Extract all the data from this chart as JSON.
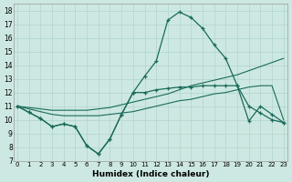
{
  "xlabel": "Humidex (Indice chaleur)",
  "bg_color": "#cde8e2",
  "line_color": "#1a6b5a",
  "grid_color": "#b0d4cc",
  "ylim": [
    7,
    18.5
  ],
  "xlim": [
    -0.3,
    23.3
  ],
  "yticks": [
    7,
    8,
    9,
    10,
    11,
    12,
    13,
    14,
    15,
    16,
    17,
    18
  ],
  "xticks": [
    0,
    1,
    2,
    3,
    4,
    5,
    6,
    7,
    8,
    9,
    10,
    11,
    12,
    13,
    14,
    15,
    16,
    17,
    18,
    19,
    20,
    21,
    22,
    23
  ],
  "curve_peak_x": [
    0,
    1,
    2,
    3,
    4,
    5,
    6,
    7,
    8,
    9,
    10,
    11,
    12,
    13,
    14,
    15,
    16,
    17,
    18,
    19,
    20,
    21,
    22,
    23
  ],
  "curve_peak_y": [
    11.0,
    10.55,
    10.1,
    9.5,
    9.7,
    9.5,
    8.1,
    7.5,
    8.6,
    10.4,
    12.0,
    13.2,
    14.3,
    17.3,
    17.9,
    17.5,
    16.7,
    15.5,
    14.5,
    12.5,
    11.0,
    10.5,
    10.0,
    9.8
  ],
  "curve_diag1_x": [
    0,
    1,
    2,
    3,
    4,
    5,
    6,
    7,
    8,
    9,
    10,
    11,
    12,
    13,
    14,
    15,
    16,
    17,
    18,
    19,
    20,
    21,
    22,
    23
  ],
  "curve_diag1_y": [
    11.0,
    10.9,
    10.8,
    10.7,
    10.7,
    10.7,
    10.7,
    10.8,
    10.9,
    11.1,
    11.3,
    11.5,
    11.7,
    11.9,
    12.2,
    12.5,
    12.7,
    12.9,
    13.1,
    13.3,
    13.6,
    13.9,
    14.2,
    14.5
  ],
  "curve_diag2_x": [
    0,
    1,
    2,
    3,
    4,
    5,
    6,
    7,
    8,
    9,
    10,
    11,
    12,
    13,
    14,
    15,
    16,
    17,
    18,
    19,
    20,
    21,
    22,
    23
  ],
  "curve_diag2_y": [
    11.0,
    10.8,
    10.6,
    10.4,
    10.3,
    10.3,
    10.3,
    10.3,
    10.4,
    10.5,
    10.6,
    10.8,
    11.0,
    11.2,
    11.4,
    11.5,
    11.7,
    11.9,
    12.0,
    12.2,
    12.4,
    12.5,
    12.5,
    10.0
  ],
  "curve_flat_x": [
    0,
    1,
    2,
    3,
    4,
    5,
    6,
    7,
    8,
    9,
    10,
    11,
    12,
    13,
    14,
    15,
    16,
    17,
    18,
    19,
    20,
    21,
    22,
    23
  ],
  "curve_flat_y": [
    11.0,
    10.55,
    10.1,
    9.5,
    9.7,
    9.5,
    8.1,
    7.5,
    8.6,
    10.4,
    12.0,
    12.0,
    12.2,
    12.3,
    12.4,
    12.4,
    12.5,
    12.5,
    12.5,
    12.5,
    9.9,
    11.0,
    10.4,
    9.8
  ]
}
